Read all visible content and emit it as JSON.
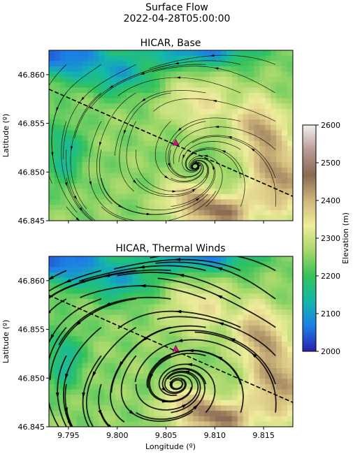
{
  "figure": {
    "title": "Surface Flow",
    "subtitle": "2022-04-28T05:00:00"
  },
  "colors": {
    "colormap_stops": [
      "#2a1fb0",
      "#1e7fe6",
      "#12b8a8",
      "#34c25a",
      "#a6d86a",
      "#f0ec9c",
      "#cfb77c",
      "#8a6a52",
      "#b89a94",
      "#f2f0f0"
    ],
    "marker": "#d01478",
    "streamline": "#000000"
  },
  "chart_data": [
    {
      "type": "streamplot",
      "title": "HICAR, Base",
      "xlabel": "",
      "ylabel": "Latitude (º)",
      "xlim": [
        9.793,
        9.818
      ],
      "ylim": [
        46.845,
        46.8625
      ],
      "x_ticks": [
        9.795,
        9.8,
        9.805,
        9.81,
        9.815
      ],
      "x_tick_labels": [
        "",
        "",
        "",
        "",
        ""
      ],
      "y_ticks": [
        46.845,
        46.85,
        46.855,
        46.86
      ],
      "y_tick_labels": [
        "46.845",
        "46.850",
        "46.855",
        "46.860"
      ],
      "transect_line": [
        [
          9.793,
          46.8585
        ],
        [
          9.818,
          46.8475
        ]
      ],
      "site_marker": {
        "x": 9.806,
        "y": 46.853
      },
      "streamline_weight": "thin"
    },
    {
      "type": "streamplot",
      "title": "HICAR, Thermal Winds",
      "xlabel": "Longitude (º)",
      "ylabel": "Latitude (º)",
      "xlim": [
        9.793,
        9.818
      ],
      "ylim": [
        46.845,
        46.8625
      ],
      "x_ticks": [
        9.795,
        9.8,
        9.805,
        9.81,
        9.815
      ],
      "x_tick_labels": [
        "9.795",
        "9.800",
        "9.805",
        "9.810",
        "9.815"
      ],
      "y_ticks": [
        46.845,
        46.85,
        46.855,
        46.86
      ],
      "y_tick_labels": [
        "46.845",
        "46.850",
        "46.855",
        "46.860"
      ],
      "transect_line": [
        [
          9.793,
          46.8585
        ],
        [
          9.818,
          46.8475
        ]
      ],
      "site_marker": {
        "x": 9.806,
        "y": 46.853
      },
      "streamline_weight": "thick"
    }
  ],
  "colorbar": {
    "label": "Elevation (m)",
    "min": 2000,
    "max": 2600,
    "ticks": [
      2000,
      2100,
      2200,
      2300,
      2400,
      2500,
      2600
    ],
    "tick_labels": [
      "2000",
      "2100",
      "2200",
      "2300",
      "2400",
      "2500",
      "2600"
    ]
  }
}
